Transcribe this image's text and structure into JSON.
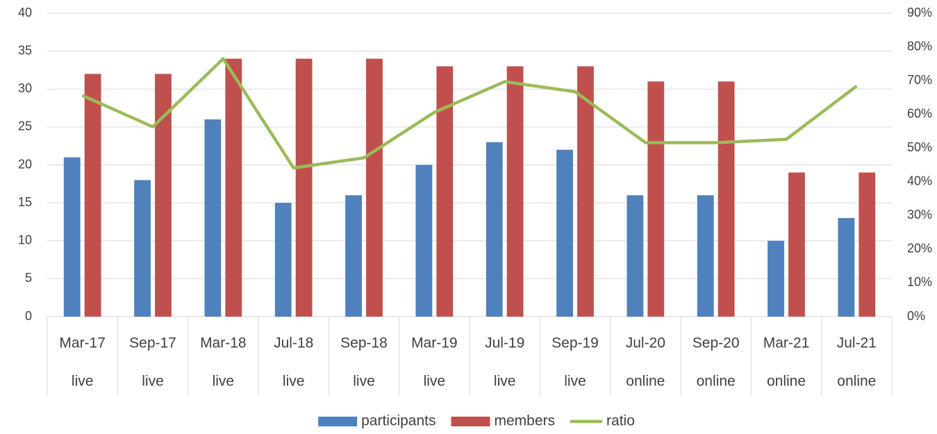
{
  "chart_data": {
    "type": "bar_line",
    "categories": [
      "Mar-17",
      "Sep-17",
      "Mar-18",
      "Jul-18",
      "Sep-18",
      "Mar-19",
      "Jul-19",
      "Sep-19",
      "Jul-20",
      "Sep-20",
      "Mar-21",
      "Jul-21"
    ],
    "groups": [
      "live",
      "live",
      "live",
      "live",
      "live",
      "live",
      "live",
      "live",
      "online",
      "online",
      "online",
      "online"
    ],
    "series": [
      {
        "name": "participants",
        "color": "#4f81bd",
        "type": "bar",
        "values": [
          21,
          18,
          26,
          15,
          16,
          20,
          23,
          22,
          16,
          16,
          10,
          13
        ]
      },
      {
        "name": "members",
        "color": "#c0504d",
        "type": "bar",
        "values": [
          32,
          32,
          34,
          34,
          34,
          33,
          33,
          33,
          31,
          31,
          19,
          19
        ]
      },
      {
        "name": "ratio",
        "color": "#9bbb59",
        "type": "line",
        "axis": "y2",
        "values": [
          65.6,
          56.3,
          76.5,
          44.1,
          47.1,
          60.6,
          69.7,
          66.7,
          51.6,
          51.6,
          52.6,
          68.4
        ]
      }
    ],
    "ylim": [
      0,
      40
    ],
    "yticks": [
      0,
      5,
      10,
      15,
      20,
      25,
      30,
      35,
      40
    ],
    "y2lim": [
      0,
      90
    ],
    "y2ticks": [
      {
        "value": 0,
        "label": "0%"
      },
      {
        "value": 10,
        "label": "10%"
      },
      {
        "value": 20,
        "label": "20%"
      },
      {
        "value": 30,
        "label": "30%"
      },
      {
        "value": 40,
        "label": "40%"
      },
      {
        "value": 50,
        "label": "50%"
      },
      {
        "value": 60,
        "label": "60%"
      },
      {
        "value": 70,
        "label": "70%"
      },
      {
        "value": 80,
        "label": "80%"
      },
      {
        "value": 90,
        "label": "90%"
      }
    ],
    "grid": true,
    "legend": "bottom"
  }
}
